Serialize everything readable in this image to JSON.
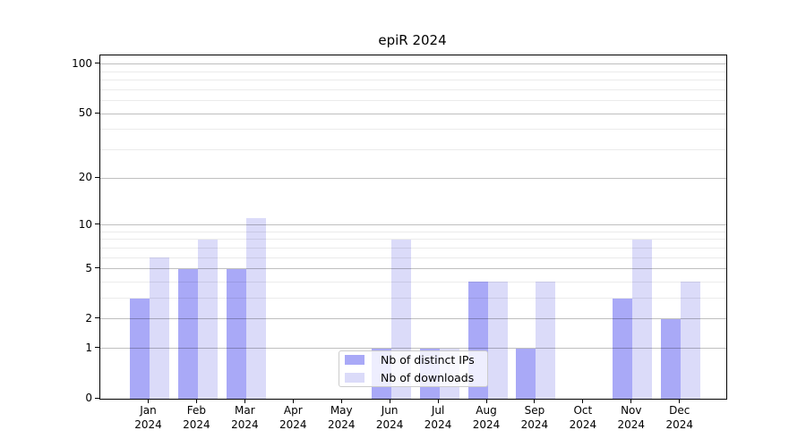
{
  "figure": {
    "title": "epiR 2024"
  },
  "chart_data": {
    "type": "bar",
    "title": "epiR 2024",
    "categories": [
      "Jan",
      "Feb",
      "Mar",
      "Apr",
      "May",
      "Jun",
      "Jul",
      "Aug",
      "Sep",
      "Oct",
      "Nov",
      "Dec"
    ],
    "x_year_label": "2024",
    "series": [
      {
        "name": "Nb of distinct IPs",
        "color": "#a9a9f7",
        "values": [
          3,
          5,
          5,
          0,
          0,
          1,
          1,
          4,
          1,
          0,
          3,
          2
        ]
      },
      {
        "name": "Nb of downloads",
        "color": "#dbdbf9",
        "values": [
          6,
          8,
          11,
          0,
          0,
          8,
          1,
          4,
          4,
          0,
          8,
          4
        ]
      }
    ],
    "xlabel": "",
    "ylabel": "",
    "yscale": "log1p",
    "yticks": [
      0,
      1,
      2,
      5,
      10,
      20,
      50,
      100
    ],
    "yticks_minor": [
      3,
      4,
      6,
      7,
      8,
      9,
      30,
      40,
      60,
      70,
      80,
      90
    ],
    "ylim": [
      0,
      112
    ],
    "grid": "horizontal",
    "legend_position": "lower-center-inside"
  }
}
